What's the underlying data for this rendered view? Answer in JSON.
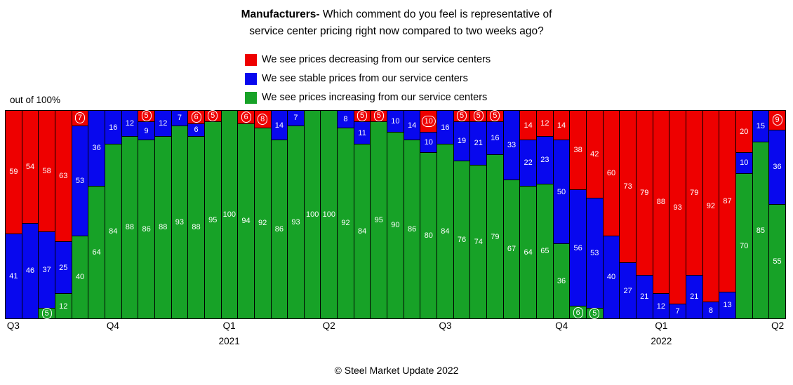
{
  "title": {
    "bold": "Manufacturers-",
    "line1_rest": " Which comment do you feel is representative of",
    "line2": "service center pricing right now compared to two weeks ago?"
  },
  "axis_note": "out of 100%",
  "footer": "© Steel Market Update 2022",
  "chart_data": {
    "type": "bar",
    "stacked": true,
    "percent_total": 100,
    "ylim": [
      0,
      100
    ],
    "legend_position": "top",
    "grid": false,
    "series": [
      {
        "key": "decreasing",
        "label": "We see prices decreasing from our service centers",
        "color": "#ee0000"
      },
      {
        "key": "stable",
        "label": "We see stable prices from our service centers",
        "color": "#0808ee"
      },
      {
        "key": "increasing",
        "label": "We see prices increasing from our service centers",
        "color": "#17a227"
      }
    ],
    "series_order_note": "each value triplet is [decreasing(red,top), stable(blue,middle), increasing(green,bottom)]",
    "values": [
      [
        59,
        41,
        0
      ],
      [
        54,
        46,
        0
      ],
      [
        58,
        37,
        5
      ],
      [
        63,
        25,
        12
      ],
      [
        7,
        53,
        40
      ],
      [
        0,
        36,
        64
      ],
      [
        0,
        16,
        84
      ],
      [
        0,
        12,
        88
      ],
      [
        5,
        9,
        86
      ],
      [
        0,
        12,
        88
      ],
      [
        0,
        7,
        93
      ],
      [
        6,
        6,
        88
      ],
      [
        5,
        0,
        95
      ],
      [
        0,
        0,
        100
      ],
      [
        6,
        0,
        94
      ],
      [
        8,
        0,
        92
      ],
      [
        0,
        14,
        86
      ],
      [
        0,
        7,
        93
      ],
      [
        0,
        0,
        100
      ],
      [
        0,
        0,
        100
      ],
      [
        0,
        8,
        92
      ],
      [
        5,
        11,
        84
      ],
      [
        5,
        0,
        95
      ],
      [
        0,
        10,
        90
      ],
      [
        0,
        14,
        86
      ],
      [
        10,
        10,
        80
      ],
      [
        0,
        16,
        84
      ],
      [
        5,
        19,
        76
      ],
      [
        5,
        21,
        74
      ],
      [
        5,
        16,
        79
      ],
      [
        0,
        33,
        67
      ],
      [
        14,
        22,
        64
      ],
      [
        12,
        23,
        65
      ],
      [
        14,
        50,
        36
      ],
      [
        38,
        56,
        6
      ],
      [
        42,
        53,
        5
      ],
      [
        60,
        40,
        0
      ],
      [
        73,
        27,
        0
      ],
      [
        79,
        21,
        0
      ],
      [
        88,
        12,
        0
      ],
      [
        93,
        7,
        0
      ],
      [
        79,
        21,
        0
      ],
      [
        92,
        8,
        0
      ],
      [
        87,
        13,
        0
      ],
      [
        20,
        10,
        70
      ],
      [
        0,
        15,
        85
      ],
      [
        9,
        36,
        55
      ]
    ],
    "x_ticks": [
      {
        "label": "Q3",
        "bar": 1
      },
      {
        "label": "Q4",
        "bar": 7
      },
      {
        "label": "Q1",
        "bar": 14,
        "year": "2021"
      },
      {
        "label": "Q2",
        "bar": 20
      },
      {
        "label": "Q3",
        "bar": 27
      },
      {
        "label": "Q4",
        "bar": 34
      },
      {
        "label": "Q1",
        "bar": 40,
        "year": "2022"
      },
      {
        "label": "Q2",
        "bar": 47
      }
    ]
  }
}
